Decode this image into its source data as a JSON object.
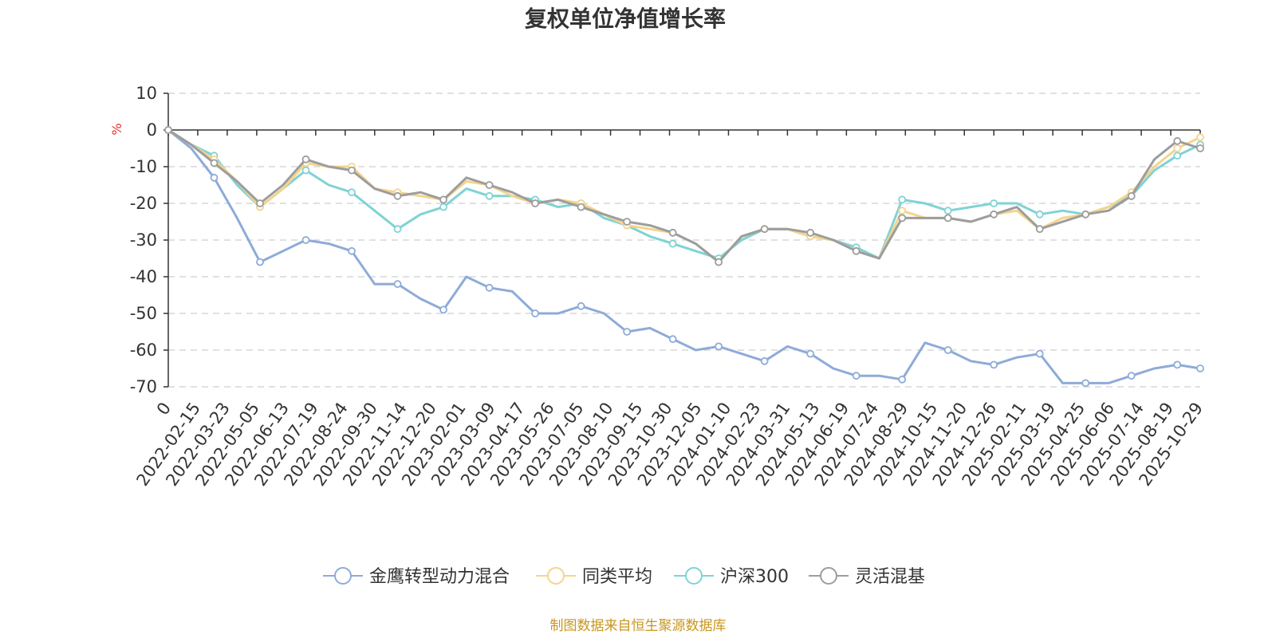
{
  "chart_data": {
    "type": "line",
    "title": "复权单位净值增长率",
    "ylabel": "%",
    "ylim": [
      -70,
      10
    ],
    "yticks": [
      10,
      0,
      -10,
      -20,
      -30,
      -40,
      -50,
      -60,
      -70
    ],
    "ytick_labels": [
      "10",
      "0",
      "-10",
      "-20",
      "-30",
      "-40",
      "-50",
      "-60",
      "-70"
    ],
    "xticks": [
      "0",
      "2022-02-15",
      "2022-03-23",
      "2022-05-05",
      "2022-06-13",
      "2022-07-19",
      "2022-08-24",
      "2022-09-30",
      "2022-11-14",
      "2022-12-20",
      "2023-02-01",
      "2023-03-09",
      "2023-04-17",
      "2023-05-26",
      "2023-07-05",
      "2023-08-10",
      "2023-09-15",
      "2023-10-30",
      "2023-12-05",
      "2024-01-10",
      "2024-02-23",
      "2024-03-31",
      "2024-05-13",
      "2024-06-19",
      "2024-07-24",
      "2024-08-29",
      "2024-10-15",
      "2024-11-20",
      "2024-12-26",
      "2025-02-11",
      "2025-03-19",
      "2025-04-25",
      "2025-06-06",
      "2025-07-14",
      "2025-08-19",
      "2025-10-29"
    ],
    "series": [
      {
        "name": "金鹰转型动力混合",
        "color": "#8eabd8",
        "values": [
          0,
          -5,
          -13,
          -24,
          -36,
          -33,
          -30,
          -31,
          -33,
          -42,
          -42,
          -46,
          -49,
          -40,
          -43,
          -44,
          -50,
          -50,
          -48,
          -50,
          -55,
          -54,
          -57,
          -60,
          -59,
          -61,
          -63,
          -59,
          -61,
          -65,
          -67,
          -67,
          -68,
          -58,
          -60,
          -63,
          -64,
          -62,
          -61,
          -69,
          -69,
          -69,
          -67,
          -65,
          -64,
          -65
        ]
      },
      {
        "name": "同类平均",
        "color": "#f5d48c",
        "values": [
          0,
          -4,
          -8,
          -14,
          -21,
          -16,
          -9,
          -10,
          -10,
          -16,
          -17,
          -18,
          -19,
          -14,
          -15,
          -18,
          -20,
          -19,
          -20,
          -23,
          -26,
          -27,
          -28,
          -31,
          -36,
          -29,
          -27,
          -27,
          -29,
          -30,
          -33,
          -35,
          -22,
          -24,
          -24,
          -25,
          -23,
          -22,
          -27,
          -24,
          -23,
          -21,
          -17,
          -10,
          -5,
          -2
        ]
      },
      {
        "name": "沪深300",
        "color": "#7fd3d4",
        "values": [
          0,
          -4,
          -7,
          -15,
          -21,
          -16,
          -11,
          -15,
          -17,
          -22,
          -27,
          -23,
          -21,
          -16,
          -18,
          -18,
          -19,
          -21,
          -20,
          -24,
          -26,
          -29,
          -31,
          -33,
          -35,
          -30,
          -27,
          -27,
          -29,
          -30,
          -32,
          -35,
          -19,
          -20,
          -22,
          -21,
          -20,
          -20,
          -23,
          -22,
          -23,
          -21,
          -18,
          -11,
          -7,
          -4
        ]
      },
      {
        "name": "灵活混基",
        "color": "#9d9d9d",
        "values": [
          0,
          -4,
          -9,
          -14,
          -20,
          -15,
          -8,
          -10,
          -11,
          -16,
          -18,
          -17,
          -19,
          -13,
          -15,
          -17,
          -20,
          -19,
          -21,
          -23,
          -25,
          -26,
          -28,
          -31,
          -36,
          -29,
          -27,
          -27,
          -28,
          -30,
          -33,
          -35,
          -24,
          -24,
          -24,
          -25,
          -23,
          -21,
          -27,
          -25,
          -23,
          -22,
          -18,
          -8,
          -3,
          -5
        ]
      }
    ],
    "legend_position": "bottom-center",
    "grid": true
  },
  "source_note": "制图数据来自恒生聚源数据库",
  "colors": {
    "title": "#333333",
    "axis": "#333333",
    "grid": "#cfcfcf",
    "unit": "#e6332a",
    "source": "#c8961e"
  }
}
